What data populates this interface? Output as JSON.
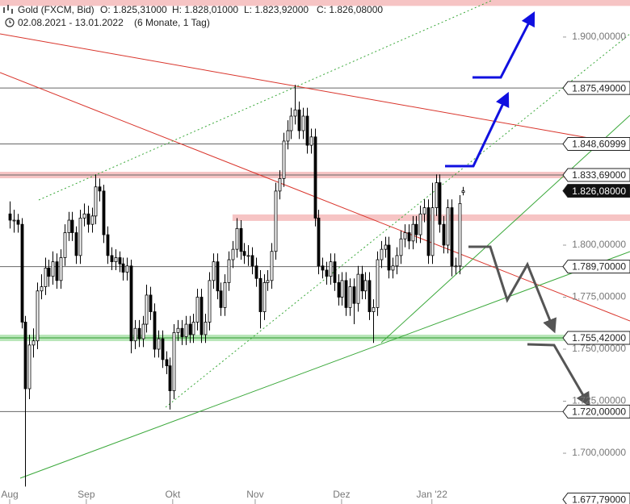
{
  "chart_data": {
    "type": "candlestick",
    "title": "Gold (FXCM, Bid)",
    "quote": [
      "O: 1.825,31000",
      "H: 1.828,01000",
      "L: 1.823,92000",
      "C: 1.826,08000"
    ],
    "range": "02.08.2021 - 13.01.2022",
    "period": "(6 Monate, 1 Tag)",
    "xlim": [
      -2.48,
      142.15
    ],
    "xticks": [
      {
        "value": 0,
        "label": "Aug"
      },
      {
        "value": 19.6,
        "label": "Sep"
      },
      {
        "value": 41.7,
        "label": "Okt"
      },
      {
        "value": 62.8,
        "label": "Nov"
      },
      {
        "value": 84.9,
        "label": "Dez"
      },
      {
        "value": 108,
        "label": "Jan '22"
      }
    ],
    "ylim": [
      1675.6,
      1917.8
    ],
    "yticks": [
      {
        "value": 1900,
        "label": "1.900,00000"
      },
      {
        "value": 1800,
        "label": "1.800,00000"
      },
      {
        "value": 1775,
        "label": "1.775,00000"
      },
      {
        "value": 1750,
        "label": "1.750,00000"
      },
      {
        "value": 1725,
        "label": "1.725,00000"
      },
      {
        "value": 1700,
        "label": "1.700,00000"
      }
    ],
    "levels": [
      {
        "value": 1875.49,
        "label": "1.875,49000",
        "kind": "line"
      },
      {
        "value": 1848.61,
        "label": "1.848,60999",
        "kind": "line"
      },
      {
        "value": 1833.69,
        "label": "1.833,69000",
        "kind": "line",
        "band": "#f6c4c4"
      },
      {
        "value": 1826.08,
        "label": "1.826,08000",
        "kind": "current"
      },
      {
        "value": 1789.7,
        "label": "1.789,70000",
        "kind": "line"
      },
      {
        "value": 1755.42,
        "label": "1.755,42000",
        "kind": "line",
        "band": "#b9e6b9",
        "color": "#2a9a2a"
      },
      {
        "value": 1720.0,
        "label": "1.720,00000",
        "kind": "line"
      },
      {
        "value": 1677.79,
        "label": "1.677,79000",
        "kind": "label"
      }
    ],
    "bands": [
      {
        "value": 1813.2,
        "start": 57,
        "color": "#f6c4c4"
      },
      {
        "value": 1916.5,
        "start": -2.48,
        "color": "#f6c4c4"
      }
    ],
    "up_color": "#ffffff",
    "down_color": "#000000",
    "ohlc": [
      [
        1815,
        1821,
        1808,
        1812
      ],
      [
        1812,
        1817,
        1806,
        1812
      ],
      [
        1812,
        1815,
        1806,
        1810
      ],
      [
        1810,
        1813,
        1760,
        1763
      ],
      [
        1763,
        1766,
        1684,
        1731
      ],
      [
        1731,
        1757,
        1726,
        1752
      ],
      [
        1752,
        1760,
        1746,
        1754
      ],
      [
        1754,
        1782,
        1750,
        1778
      ],
      [
        1778,
        1786,
        1774,
        1780
      ],
      [
        1780,
        1794,
        1776,
        1789
      ],
      [
        1789,
        1793,
        1780,
        1785
      ],
      [
        1785,
        1797,
        1781,
        1792
      ],
      [
        1792,
        1796,
        1779,
        1783
      ],
      [
        1783,
        1798,
        1779,
        1794
      ],
      [
        1794,
        1810,
        1790,
        1806
      ],
      [
        1806,
        1816,
        1802,
        1812
      ],
      [
        1812,
        1816,
        1802,
        1806
      ],
      [
        1806,
        1809,
        1791,
        1795
      ],
      [
        1795,
        1817,
        1791,
        1813
      ],
      [
        1813,
        1820,
        1809,
        1815
      ],
      [
        1815,
        1819,
        1806,
        1810
      ],
      [
        1810,
        1818,
        1806,
        1814
      ],
      [
        1814,
        1834,
        1810,
        1828
      ],
      [
        1828,
        1832,
        1821,
        1826
      ],
      [
        1826,
        1829,
        1801,
        1805
      ],
      [
        1805,
        1809,
        1791,
        1795
      ],
      [
        1795,
        1799,
        1788,
        1792
      ],
      [
        1792,
        1798,
        1788,
        1794
      ],
      [
        1794,
        1797,
        1787,
        1791
      ],
      [
        1791,
        1794,
        1783,
        1787
      ],
      [
        1787,
        1794,
        1783,
        1790
      ],
      [
        1790,
        1793,
        1748,
        1754
      ],
      [
        1754,
        1764,
        1750,
        1760
      ],
      [
        1760,
        1764,
        1751,
        1755
      ],
      [
        1755,
        1766,
        1751,
        1762
      ],
      [
        1762,
        1781,
        1758,
        1776
      ],
      [
        1776,
        1780,
        1764,
        1768
      ],
      [
        1768,
        1772,
        1746,
        1750
      ],
      [
        1750,
        1759,
        1746,
        1755
      ],
      [
        1755,
        1759,
        1741,
        1745
      ],
      [
        1745,
        1749,
        1738,
        1742
      ],
      [
        1742,
        1746,
        1721,
        1730
      ],
      [
        1730,
        1762,
        1726,
        1758
      ],
      [
        1758,
        1764,
        1754,
        1760
      ],
      [
        1760,
        1764,
        1752,
        1756
      ],
      [
        1756,
        1766,
        1752,
        1762
      ],
      [
        1762,
        1766,
        1753,
        1757
      ],
      [
        1757,
        1767,
        1753,
        1763
      ],
      [
        1763,
        1779,
        1759,
        1775
      ],
      [
        1775,
        1779,
        1753,
        1757
      ],
      [
        1757,
        1767,
        1753,
        1763
      ],
      [
        1763,
        1787,
        1759,
        1783
      ],
      [
        1783,
        1796,
        1779,
        1792
      ],
      [
        1792,
        1796,
        1774,
        1778
      ],
      [
        1778,
        1782,
        1766,
        1770
      ],
      [
        1770,
        1786,
        1766,
        1782
      ],
      [
        1782,
        1797,
        1778,
        1793
      ],
      [
        1793,
        1802,
        1789,
        1798
      ],
      [
        1798,
        1813,
        1794,
        1808
      ],
      [
        1808,
        1812,
        1793,
        1797
      ],
      [
        1797,
        1801,
        1791,
        1795
      ],
      [
        1795,
        1800,
        1790,
        1795
      ],
      [
        1795,
        1799,
        1786,
        1790
      ],
      [
        1790,
        1794,
        1780,
        1784
      ],
      [
        1784,
        1788,
        1760,
        1768
      ],
      [
        1768,
        1786,
        1764,
        1782
      ],
      [
        1782,
        1788,
        1778,
        1783
      ],
      [
        1783,
        1801,
        1779,
        1797
      ],
      [
        1797,
        1830,
        1793,
        1826
      ],
      [
        1826,
        1836,
        1822,
        1832
      ],
      [
        1832,
        1854,
        1828,
        1850
      ],
      [
        1850,
        1860,
        1846,
        1855
      ],
      [
        1855,
        1866,
        1851,
        1862
      ],
      [
        1862,
        1877,
        1858,
        1865
      ],
      [
        1865,
        1869,
        1851,
        1855
      ],
      [
        1855,
        1866,
        1851,
        1862
      ],
      [
        1862,
        1866,
        1844,
        1848
      ],
      [
        1848,
        1856,
        1844,
        1852
      ],
      [
        1852,
        1856,
        1809,
        1813
      ],
      [
        1813,
        1817,
        1786,
        1790
      ],
      [
        1790,
        1794,
        1784,
        1788
      ],
      [
        1788,
        1792,
        1781,
        1785
      ],
      [
        1785,
        1796,
        1781,
        1792
      ],
      [
        1792,
        1796,
        1778,
        1782
      ],
      [
        1782,
        1786,
        1771,
        1775
      ],
      [
        1775,
        1787,
        1771,
        1783
      ],
      [
        1783,
        1787,
        1766,
        1770
      ],
      [
        1770,
        1784,
        1766,
        1780
      ],
      [
        1780,
        1784,
        1762,
        1772
      ],
      [
        1772,
        1790,
        1768,
        1786
      ],
      [
        1786,
        1790,
        1774,
        1778
      ],
      [
        1778,
        1787,
        1774,
        1783
      ],
      [
        1783,
        1787,
        1764,
        1768
      ],
      [
        1768,
        1774,
        1753,
        1770
      ],
      [
        1770,
        1797,
        1766,
        1793
      ],
      [
        1793,
        1802,
        1789,
        1798
      ],
      [
        1798,
        1804,
        1794,
        1800
      ],
      [
        1800,
        1804,
        1784,
        1788
      ],
      [
        1788,
        1794,
        1784,
        1790
      ],
      [
        1790,
        1799,
        1786,
        1795
      ],
      [
        1795,
        1807,
        1791,
        1803
      ],
      [
        1803,
        1810,
        1799,
        1806
      ],
      [
        1806,
        1810,
        1798,
        1802
      ],
      [
        1802,
        1814,
        1798,
        1810
      ],
      [
        1810,
        1814,
        1801,
        1805
      ],
      [
        1805,
        1819,
        1801,
        1815
      ],
      [
        1815,
        1822,
        1811,
        1818
      ],
      [
        1818,
        1822,
        1791,
        1795
      ],
      [
        1795,
        1830,
        1791,
        1818
      ],
      [
        1818,
        1834,
        1814,
        1830
      ],
      [
        1830,
        1834,
        1806,
        1810
      ],
      [
        1810,
        1814,
        1796,
        1800
      ],
      [
        1800,
        1822,
        1796,
        1818
      ],
      [
        1818,
        1822,
        1785,
        1790
      ],
      [
        1790,
        1794,
        1786,
        1790
      ],
      [
        1790,
        1824,
        1786,
        1820
      ],
      [
        1825.31,
        1828.01,
        1823.92,
        1826.08
      ]
    ]
  }
}
